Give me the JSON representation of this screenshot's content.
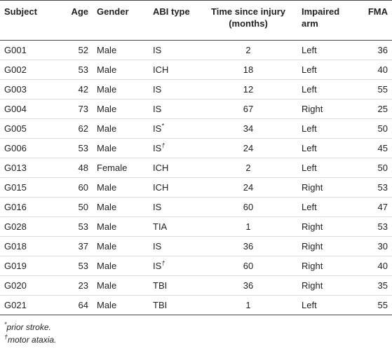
{
  "table": {
    "header": [
      "Subject",
      "Age",
      "Gender",
      "ABI type",
      "Time since injury (months)",
      "Impaired arm",
      "FMA"
    ],
    "rows": [
      [
        "G001",
        52,
        "Male",
        "IS",
        2,
        "Left",
        36
      ],
      [
        "G002",
        53,
        "Male",
        "ICH",
        18,
        "Left",
        40
      ],
      [
        "G003",
        42,
        "Male",
        "IS",
        12,
        "Left",
        55
      ],
      [
        "G004",
        73,
        "Male",
        "IS",
        67,
        "Right",
        25
      ],
      [
        "G005",
        62,
        "Male",
        {
          "text": "IS",
          "note": "*"
        },
        34,
        "Left",
        50
      ],
      [
        "G006",
        53,
        "Male",
        {
          "text": "IS",
          "note": "†"
        },
        24,
        "Left",
        45
      ],
      [
        "G013",
        48,
        "Female",
        "ICH",
        2,
        "Left",
        50
      ],
      [
        "G015",
        60,
        "Male",
        "ICH",
        24,
        "Right",
        53
      ],
      [
        "G016",
        50,
        "Male",
        "IS",
        60,
        "Left",
        47
      ],
      [
        "G028",
        53,
        "Male",
        "TIA",
        1,
        "Right",
        53
      ],
      [
        "G018",
        37,
        "Male",
        "IS",
        36,
        "Right",
        30
      ],
      [
        "G019",
        53,
        "Male",
        {
          "text": "IS",
          "note": "†"
        },
        60,
        "Right",
        40
      ],
      [
        "G020",
        23,
        "Male",
        "TBI",
        36,
        "Right",
        35
      ],
      [
        "G021",
        64,
        "Male",
        "TBI",
        1,
        "Left",
        55
      ]
    ],
    "footnotes": [
      {
        "mark": "*",
        "text": "prior stroke."
      },
      {
        "mark": "†",
        "text": "motor ataxia."
      }
    ]
  }
}
